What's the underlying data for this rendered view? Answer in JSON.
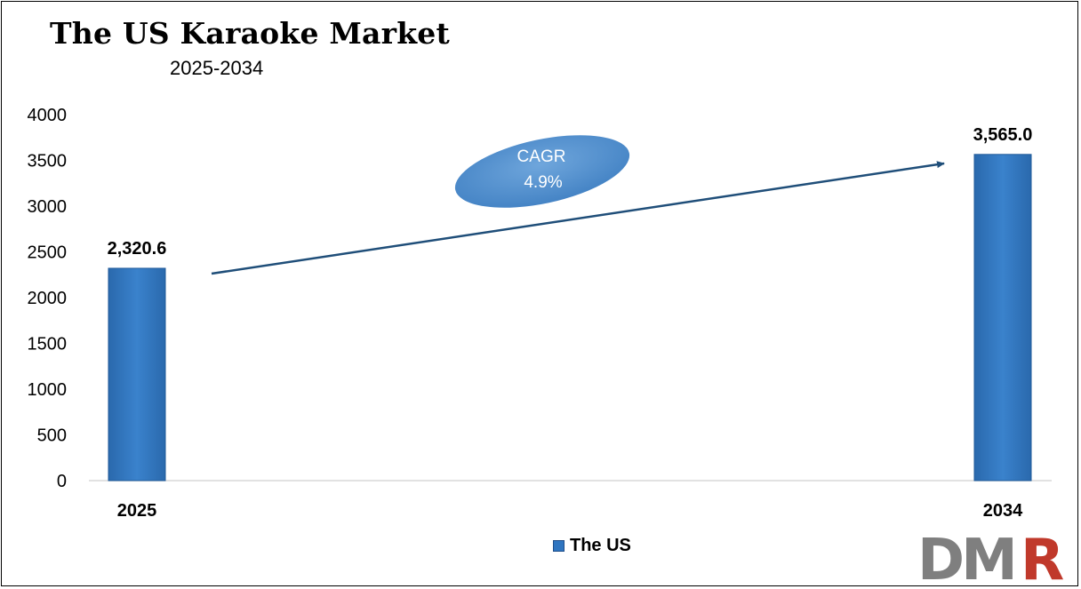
{
  "chart_data": {
    "type": "bar",
    "title": "The US Karaoke Market",
    "subtitle": "2025-2034",
    "categories": [
      "2025",
      "2034"
    ],
    "series": [
      {
        "name": "The US",
        "values": [
          2320.6,
          3565.0
        ],
        "color": "#2f75c0"
      }
    ],
    "data_labels": [
      "2,320.6",
      "3,565.0"
    ],
    "ylim": [
      0,
      4000
    ],
    "yticks": [
      0,
      500,
      1000,
      1500,
      2000,
      2500,
      3000,
      3500,
      4000
    ],
    "grid": false,
    "legend_position": "bottom-center",
    "annotation": {
      "line1": "CAGR",
      "line2": "4.9%"
    }
  },
  "logo": {
    "text_dm": "DM",
    "text_r": "R",
    "color_dm": "#7f7f7f",
    "color_r": "#c0392b"
  }
}
